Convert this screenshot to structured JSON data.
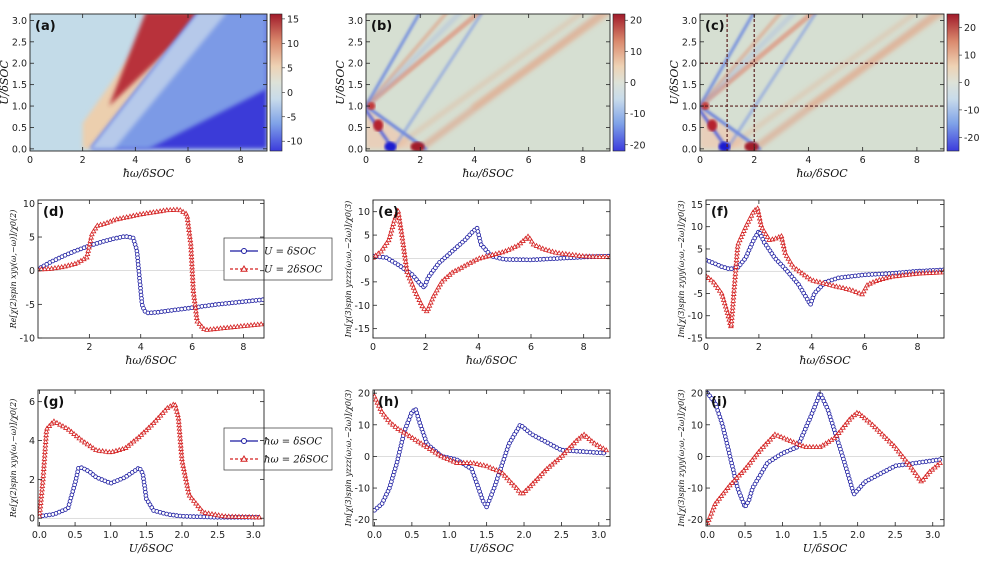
{
  "figure": {
    "colors": {
      "blue": "#1a1aa0",
      "red": "#d42020"
    }
  },
  "chart_data": [
    {
      "id": "a",
      "type": "heatmap",
      "label": "(a)",
      "xlabel": "ħω/δSOC",
      "ylabel": "U/δSOC",
      "xlim": [
        0,
        9
      ],
      "ylim": [
        -0.05,
        3.15
      ],
      "xticks": [
        "0",
        "2",
        "4",
        "6",
        "8"
      ],
      "yticks": [
        "0.0",
        "0.5",
        "1.0",
        "1.5",
        "2.0",
        "2.5",
        "3.0"
      ],
      "colorbar": {
        "min": -12,
        "max": 16,
        "ticks": [
          "15",
          "10",
          "5",
          "0",
          "-5",
          "-10"
        ]
      },
      "description": "second-order spin response map; red band between lines ħω=U+2 and ħω=2U, blue region right of ħω=2U"
    },
    {
      "id": "b",
      "type": "heatmap",
      "label": "(b)",
      "xlabel": "ħω/δSOC",
      "ylabel": "U/δSOC",
      "xlim": [
        0,
        9
      ],
      "ylim": [
        -0.05,
        3.15
      ],
      "xticks": [
        "0",
        "2",
        "4",
        "6",
        "8"
      ],
      "yticks": [
        "0.0",
        "0.5",
        "1.0",
        "1.5",
        "2.0",
        "2.5",
        "3.0"
      ],
      "colorbar": {
        "min": -22,
        "max": 22,
        "ticks": [
          "20",
          "10",
          "0",
          "-10",
          "-20"
        ]
      },
      "description": "third-order spin response map with resonance lines fanning from U=1 and ħω=1,2"
    },
    {
      "id": "c",
      "type": "heatmap",
      "label": "(c)",
      "xlabel": "ħω/δSOC",
      "ylabel": "U/δSOC",
      "xlim": [
        0,
        9
      ],
      "ylim": [
        -0.05,
        3.15
      ],
      "xticks": [
        "0",
        "2",
        "4",
        "6",
        "8"
      ],
      "yticks": [
        "0.0",
        "0.5",
        "1.0",
        "1.5",
        "2.0",
        "2.5",
        "3.0"
      ],
      "colorbar": {
        "min": -25,
        "max": 25,
        "ticks": [
          "20",
          "10",
          "0",
          "-10",
          "-20"
        ]
      },
      "guides": {
        "vertical": [
          1,
          2
        ],
        "horizontal": [
          1,
          2
        ]
      },
      "description": "third-order spin response map, dashed guide lines at ħω=1,2 and U=1,2"
    },
    {
      "id": "d",
      "type": "line",
      "label": "(d)",
      "xlabel": "ħω/δSOC",
      "ylabel": "Re[χ(2)spin xyy(ω,−ω)]/χ0(2)",
      "xlim": [
        0,
        8.8
      ],
      "ylim": [
        -10,
        10.5
      ],
      "xticks": [
        "2",
        "4",
        "6",
        "8"
      ],
      "yticks": [
        "10",
        "5",
        "0",
        "-5",
        "-10"
      ],
      "series": [
        {
          "name": "U = δSOC",
          "color": "blue",
          "marker": "circle",
          "x": [
            0,
            0.5,
            1,
            1.5,
            2,
            2.5,
            3,
            3.4,
            3.7,
            3.85,
            3.95,
            4.05,
            4.15,
            4.3,
            4.6,
            5,
            6,
            7,
            8,
            8.8
          ],
          "y": [
            0.2,
            1.3,
            2.2,
            3.0,
            3.7,
            4.3,
            4.8,
            5.1,
            4.9,
            3.0,
            -1.0,
            -5.0,
            -6.0,
            -6.3,
            -6.2,
            -6.0,
            -5.5,
            -5.0,
            -4.6,
            -4.3
          ]
        },
        {
          "name": "U = 2δSOC",
          "color": "red",
          "marker": "triangle",
          "x": [
            0,
            0.5,
            1,
            1.5,
            1.9,
            2.1,
            2.3,
            2.6,
            3,
            4,
            5,
            5.5,
            5.8,
            5.95,
            6.05,
            6.2,
            6.5,
            7,
            8,
            8.8
          ],
          "y": [
            0.2,
            0.3,
            0.6,
            1.1,
            2.0,
            5.5,
            6.7,
            7.0,
            7.6,
            8.4,
            9.0,
            9.1,
            8.4,
            4.0,
            -3.0,
            -7.5,
            -8.8,
            -8.6,
            -8.2,
            -7.9
          ]
        }
      ],
      "legend": [
        "U = δSOC",
        "U = 2δSOC"
      ]
    },
    {
      "id": "e",
      "type": "line",
      "label": "(e)",
      "xlabel": "ħω/δSOC",
      "ylabel": "Im[χ(3)spin yzzz(ω;ω,−2ω)]/χ0(3)",
      "xlim": [
        0,
        9
      ],
      "ylim": [
        -17,
        12.5
      ],
      "xticks": [
        "0",
        "2",
        "4",
        "6",
        "8"
      ],
      "yticks": [
        "10",
        "5",
        "0",
        "-5",
        "-10",
        "-15"
      ],
      "series": [
        {
          "name": "U = δSOC",
          "color": "blue",
          "marker": "circle",
          "x": [
            0,
            0.5,
            1,
            1.5,
            1.8,
            1.95,
            2.1,
            2.5,
            3,
            3.5,
            3.8,
            3.95,
            4.1,
            4.5,
            5,
            6,
            7,
            8,
            9
          ],
          "y": [
            0.5,
            0.2,
            -1.5,
            -3.5,
            -5.5,
            -6.2,
            -4.0,
            -1.0,
            1.5,
            4.0,
            5.8,
            6.5,
            3.0,
            0.5,
            -0.2,
            -0.3,
            0.0,
            0.3,
            0.5
          ]
        },
        {
          "name": "U = 2δSOC",
          "color": "red",
          "marker": "triangle",
          "x": [
            0,
            0.3,
            0.6,
            0.8,
            0.95,
            1.1,
            1.3,
            1.6,
            1.9,
            2.05,
            2.3,
            2.6,
            3,
            4,
            5,
            5.5,
            5.9,
            6.1,
            6.5,
            7,
            8,
            9
          ],
          "y": [
            0.2,
            1.5,
            4.0,
            8.0,
            10.5,
            5.0,
            -3.0,
            -7.0,
            -10.5,
            -11.3,
            -8.0,
            -5.0,
            -3.0,
            0.0,
            1.5,
            2.8,
            4.8,
            3.0,
            2.0,
            1.2,
            0.5,
            0.3
          ]
        }
      ]
    },
    {
      "id": "f",
      "type": "line",
      "label": "(f)",
      "xlabel": "ħω/δSOC",
      "ylabel": "Im[χ(3)spin zyyy(ω;ω,−2ω)]/χ0(3)",
      "xlim": [
        0,
        9
      ],
      "ylim": [
        -15,
        16
      ],
      "xticks": [
        "0",
        "2",
        "4",
        "6",
        "8"
      ],
      "yticks": [
        "15",
        "10",
        "5",
        "0",
        "-5",
        "-10",
        "-15"
      ],
      "series": [
        {
          "name": "U = δSOC",
          "color": "blue",
          "marker": "circle",
          "x": [
            0,
            0.3,
            0.6,
            0.9,
            1.2,
            1.5,
            1.8,
            2.0,
            2.2,
            2.6,
            3,
            3.5,
            3.8,
            3.95,
            4.1,
            4.5,
            5,
            6,
            7,
            8,
            9
          ],
          "y": [
            2.5,
            1.8,
            1.0,
            0.5,
            0.8,
            3.0,
            7.0,
            9.0,
            6.5,
            3.0,
            0.5,
            -3.0,
            -6.0,
            -7.5,
            -5.0,
            -2.5,
            -1.5,
            -0.8,
            -0.5,
            0.0,
            0.3
          ]
        },
        {
          "name": "U = 2δSOC",
          "color": "red",
          "marker": "triangle",
          "x": [
            0,
            0.3,
            0.6,
            0.8,
            0.95,
            1.05,
            1.2,
            1.5,
            1.8,
            1.95,
            2.1,
            2.4,
            2.7,
            2.85,
            3.0,
            3.3,
            4,
            5,
            5.5,
            5.9,
            6.1,
            6.5,
            7,
            8,
            9
          ],
          "y": [
            -1.0,
            -2.5,
            -5.0,
            -9.0,
            -12.5,
            -5.0,
            6.0,
            10.0,
            13.5,
            14.2,
            10.0,
            7.0,
            7.5,
            8.0,
            4.0,
            1.0,
            -2.0,
            -3.5,
            -4.2,
            -5.2,
            -3.0,
            -2.0,
            -1.2,
            -0.5,
            -0.2
          ]
        }
      ]
    },
    {
      "id": "g",
      "type": "line",
      "label": "(g)",
      "xlabel": "U/δSOC",
      "ylabel": "Re[χ(2)spin xyy(ω,−ω)]/χ0(2)",
      "xlim": [
        -0.02,
        3.15
      ],
      "ylim": [
        -0.4,
        6.6
      ],
      "xticks": [
        "0.0",
        "0.5",
        "1.0",
        "1.5",
        "2.0",
        "2.5",
        "3.0"
      ],
      "yticks": [
        "6",
        "4",
        "2",
        "0"
      ],
      "series": [
        {
          "name": "ħω = δSOC",
          "color": "blue",
          "marker": "circle",
          "x": [
            0,
            0.2,
            0.4,
            0.5,
            0.55,
            0.6,
            0.7,
            0.8,
            1.0,
            1.2,
            1.4,
            1.45,
            1.5,
            1.6,
            1.8,
            2.0,
            2.5,
            3.1
          ],
          "y": [
            0.1,
            0.2,
            0.5,
            1.8,
            2.6,
            2.6,
            2.4,
            2.1,
            1.8,
            2.1,
            2.6,
            2.3,
            1.0,
            0.4,
            0.2,
            0.1,
            0.05,
            0.05
          ]
        },
        {
          "name": "ħω = 2δSOC",
          "color": "red",
          "marker": "triangle",
          "x": [
            0,
            0.05,
            0.1,
            0.2,
            0.4,
            0.6,
            0.8,
            1.0,
            1.2,
            1.4,
            1.6,
            1.8,
            1.9,
            1.95,
            2.0,
            2.1,
            2.3,
            2.6,
            3.1
          ],
          "y": [
            0.1,
            2.0,
            4.6,
            5.0,
            4.6,
            4.0,
            3.5,
            3.4,
            3.6,
            4.2,
            4.9,
            5.7,
            5.9,
            5.2,
            3.0,
            1.2,
            0.3,
            0.1,
            0.05
          ]
        }
      ],
      "legend": [
        "ħω = δSOC",
        "ħω = 2δSOC"
      ]
    },
    {
      "id": "h",
      "type": "line",
      "label": "(h)",
      "xlabel": "U/δSOC",
      "ylabel": "Im[χ(3)spin yzzz(ω;ω,−2ω)]/χ0(3)",
      "xlim": [
        -0.02,
        3.15
      ],
      "ylim": [
        -22,
        21
      ],
      "xticks": [
        "0.0",
        "0.5",
        "1.0",
        "1.5",
        "2.0",
        "2.5",
        "3.0"
      ],
      "yticks": [
        "20",
        "10",
        "0",
        "-10",
        "-20"
      ],
      "series": [
        {
          "name": "ħω = δSOC",
          "color": "blue",
          "marker": "circle",
          "x": [
            0,
            0.1,
            0.2,
            0.3,
            0.4,
            0.5,
            0.55,
            0.6,
            0.7,
            0.9,
            1.1,
            1.3,
            1.45,
            1.5,
            1.6,
            1.8,
            1.95,
            2.1,
            2.5,
            3.1
          ],
          "y": [
            -17,
            -15,
            -10,
            -2,
            8,
            14,
            15,
            11,
            4,
            0,
            -1,
            -4,
            -14,
            -16,
            -10,
            4,
            10,
            7,
            2,
            1
          ]
        },
        {
          "name": "ħω = 2δSOC",
          "color": "red",
          "marker": "triangle",
          "x": [
            0,
            0.1,
            0.2,
            0.3,
            0.5,
            0.7,
            0.9,
            1.1,
            1.3,
            1.5,
            1.7,
            1.9,
            1.97,
            2.1,
            2.3,
            2.5,
            2.7,
            2.8,
            2.95,
            3.1
          ],
          "y": [
            19,
            14,
            11,
            9,
            6,
            3,
            0,
            -2,
            -2,
            -3,
            -5,
            -10,
            -12,
            -9,
            -4,
            0,
            5,
            7,
            4,
            2
          ]
        }
      ]
    },
    {
      "id": "i",
      "type": "line",
      "label": "(i)",
      "xlabel": "U/δSOC",
      "ylabel": "Im[χ(3)spin zyyy(ω;ω,−2ω)]/χ0(3)",
      "xlim": [
        -0.02,
        3.15
      ],
      "ylim": [
        -22,
        21
      ],
      "xticks": [
        "0.0",
        "0.5",
        "1.0",
        "1.5",
        "2.0",
        "2.5",
        "3.0"
      ],
      "yticks": [
        "20",
        "10",
        "0",
        "-10",
        "-20"
      ],
      "series": [
        {
          "name": "ħω = δSOC",
          "color": "blue",
          "marker": "circle",
          "x": [
            0,
            0.1,
            0.2,
            0.3,
            0.4,
            0.5,
            0.55,
            0.6,
            0.8,
            1.0,
            1.2,
            1.4,
            1.5,
            1.6,
            1.8,
            1.95,
            2.1,
            2.5,
            3.1
          ],
          "y": [
            20,
            17,
            10,
            0,
            -10,
            -16,
            -14,
            -10,
            -2,
            1,
            3,
            14,
            20,
            15,
            0,
            -12,
            -8,
            -3,
            -1
          ]
        },
        {
          "name": "ħω = 2δSOC",
          "color": "red",
          "marker": "triangle",
          "x": [
            0,
            0.05,
            0.1,
            0.3,
            0.5,
            0.7,
            0.9,
            1.1,
            1.3,
            1.5,
            1.7,
            1.9,
            2.0,
            2.2,
            2.5,
            2.7,
            2.85,
            2.95,
            3.1
          ],
          "y": [
            -21,
            -18,
            -15,
            -9,
            -4,
            2,
            7,
            5,
            3,
            3,
            6,
            12,
            14,
            10,
            3,
            -3,
            -8,
            -5,
            -2
          ]
        }
      ]
    }
  ]
}
